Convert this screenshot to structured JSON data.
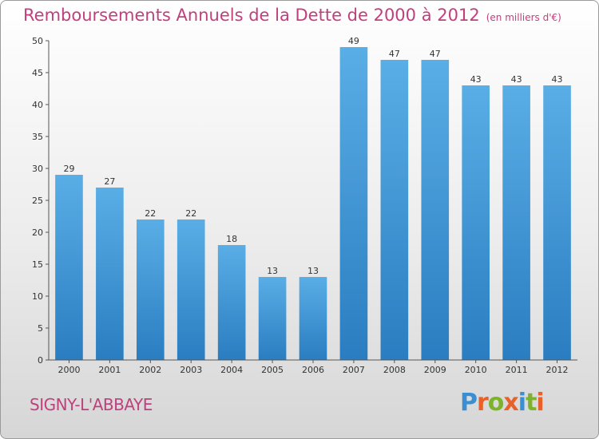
{
  "chart_data": {
    "type": "bar",
    "title": "Remboursements Annuels de la Dette de 2000 à 2012",
    "unit_note": "(en milliers d'€)",
    "categories": [
      "2000",
      "2001",
      "2002",
      "2003",
      "2004",
      "2005",
      "2006",
      "2007",
      "2008",
      "2009",
      "2010",
      "2011",
      "2012"
    ],
    "values": [
      29,
      27,
      22,
      22,
      18,
      13,
      13,
      49,
      47,
      47,
      43,
      43,
      43
    ],
    "ylim": [
      0,
      50
    ],
    "yticks": [
      0,
      5,
      10,
      15,
      20,
      25,
      30,
      35,
      40,
      45,
      50
    ],
    "xlabel": "",
    "ylabel": "",
    "grid": false,
    "bar_color_top": "#5aaee6",
    "bar_color_bottom": "#2a7dc0",
    "title_color": "#c0407e"
  },
  "place_name": "SIGNY-L'ABBAYE",
  "logo": {
    "text": "Proxiti",
    "letter_colors": [
      "#3a8fd4",
      "#e8612a",
      "#7cb32a",
      "#e8612a",
      "#3a8fd4",
      "#7cb32a",
      "#e8612a"
    ]
  }
}
